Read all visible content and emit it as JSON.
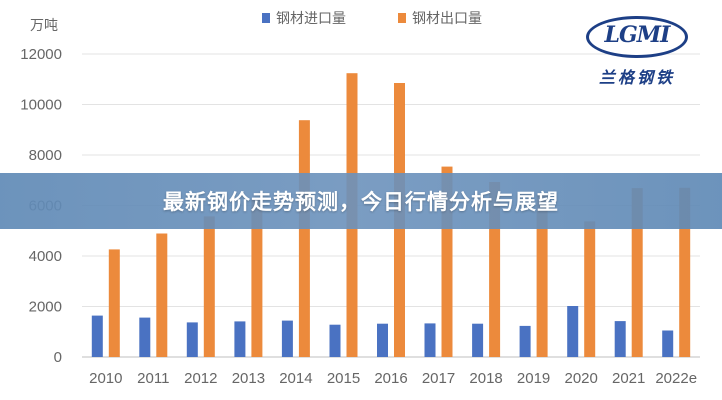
{
  "banner": {
    "title": "最新钢价走势预测，今日行情分析与展望"
  },
  "logo": {
    "mark": "LGMI",
    "subtitle": "兰格钢铁"
  },
  "colors": {
    "import": "#4a72c2",
    "export": "#ec8a3c",
    "banner": "#6a8fba"
  },
  "chart_data": {
    "type": "bar",
    "unit_label": "万吨",
    "categories": [
      "2010",
      "2011",
      "2012",
      "2013",
      "2014",
      "2015",
      "2016",
      "2017",
      "2018",
      "2019",
      "2020",
      "2021",
      "2022e"
    ],
    "series": [
      {
        "name": "钢材进口量",
        "color": "#4a72c2",
        "values": [
          1640,
          1560,
          1370,
          1410,
          1440,
          1280,
          1320,
          1330,
          1320,
          1230,
          2020,
          1420,
          1050
        ]
      },
      {
        "name": "钢材出口量",
        "color": "#ec8a3c",
        "values": [
          4260,
          4890,
          5570,
          6230,
          9380,
          11240,
          10850,
          7540,
          6930,
          6430,
          5370,
          6690,
          6700
        ]
      }
    ],
    "ylim": [
      0,
      12000
    ],
    "yticks": [
      0,
      2000,
      4000,
      6000,
      8000,
      10000,
      12000
    ],
    "legend_position": "top-center",
    "grid": true
  }
}
